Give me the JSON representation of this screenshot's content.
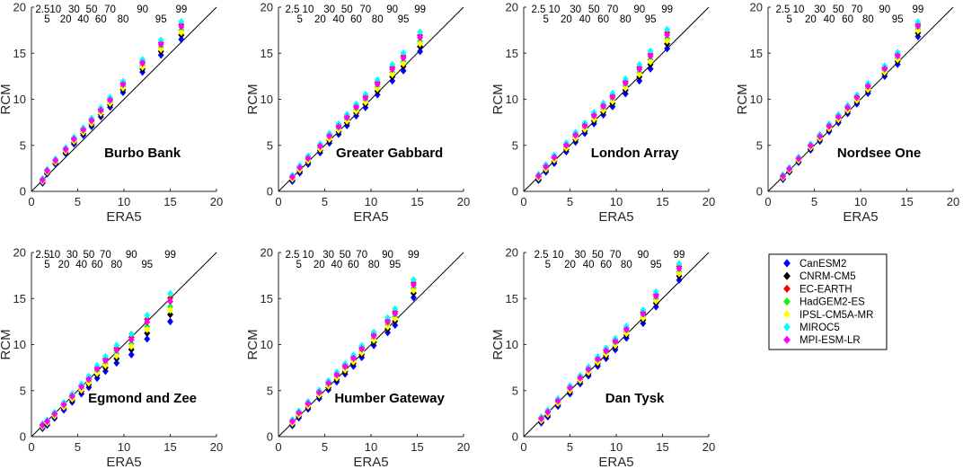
{
  "chart_data": {
    "type": "scatter",
    "xlabel": "ERA5",
    "ylabel": "RCM",
    "xlim": [
      0,
      20
    ],
    "ylim": [
      0,
      20
    ],
    "ticks": [
      0,
      5,
      10,
      15,
      20
    ],
    "reference_line": "1:1",
    "marker": "diamond",
    "percentiles": [
      "2.5",
      "5",
      "10",
      "20",
      "30",
      "40",
      "50",
      "60",
      "70",
      "80",
      "90",
      "95",
      "99"
    ],
    "legend": {
      "placement": "right",
      "entries": [
        {
          "name": "CanESM2",
          "color": "#0000ff"
        },
        {
          "name": "CNRM-CM5",
          "color": "#000000"
        },
        {
          "name": "EC-EARTH",
          "color": "#ff0000"
        },
        {
          "name": "HadGEM2-ES",
          "color": "#00ff00"
        },
        {
          "name": "IPSL-CM5A-MR",
          "color": "#ffff00"
        },
        {
          "name": "MIROC5",
          "color": "#00ffff"
        },
        {
          "name": "MPI-ESM-LR",
          "color": "#ff00ff"
        }
      ]
    },
    "panels": [
      {
        "title": "Burbo Bank",
        "era5": [
          1.2,
          1.7,
          2.6,
          3.7,
          4.6,
          5.6,
          6.5,
          7.5,
          8.5,
          9.9,
          12.0,
          14.0,
          16.2
        ],
        "offsets": [
          0.0,
          0.5,
          0.7,
          0.8,
          1.0,
          1.0,
          1.1,
          1.2,
          1.3,
          1.6,
          1.8,
          1.8,
          1.5
        ],
        "spread": [
          0.3,
          0.3,
          0.35,
          0.4,
          0.45,
          0.5,
          0.55,
          0.6,
          0.65,
          0.75,
          0.85,
          1.0,
          1.2
        ]
      },
      {
        "title": "Greater Gabbard",
        "era5": [
          1.5,
          2.3,
          3.2,
          4.5,
          5.5,
          6.5,
          7.4,
          8.4,
          9.4,
          10.7,
          12.3,
          13.5,
          15.3
        ],
        "offsets": [
          0.0,
          0.2,
          0.3,
          0.3,
          0.4,
          0.4,
          0.5,
          0.6,
          0.6,
          0.8,
          0.8,
          0.8,
          1.2
        ],
        "spread": [
          0.4,
          0.5,
          0.55,
          0.6,
          0.65,
          0.7,
          0.75,
          0.8,
          0.9,
          1.0,
          1.1,
          1.2,
          1.3
        ]
      },
      {
        "title": "London Array",
        "era5": [
          1.6,
          2.4,
          3.3,
          4.6,
          5.6,
          6.6,
          7.6,
          8.6,
          9.6,
          11.0,
          12.5,
          13.7,
          15.5
        ],
        "offsets": [
          0.0,
          0.2,
          0.3,
          0.3,
          0.4,
          0.4,
          0.5,
          0.5,
          0.5,
          0.6,
          0.6,
          0.8,
          1.3
        ],
        "spread": [
          0.4,
          0.5,
          0.55,
          0.6,
          0.65,
          0.7,
          0.75,
          0.8,
          0.9,
          1.0,
          1.1,
          1.2,
          1.3
        ]
      },
      {
        "title": "Nordsee One",
        "era5": [
          1.6,
          2.3,
          3.3,
          4.6,
          5.6,
          6.6,
          7.6,
          8.6,
          9.6,
          10.8,
          12.6,
          14.0,
          16.2
        ],
        "offsets": [
          0.0,
          0.1,
          0.2,
          0.3,
          0.3,
          0.4,
          0.4,
          0.4,
          0.5,
          0.5,
          0.6,
          0.6,
          1.6
        ],
        "spread": [
          0.3,
          0.3,
          0.35,
          0.4,
          0.45,
          0.5,
          0.55,
          0.55,
          0.6,
          0.65,
          0.7,
          0.8,
          1.0
        ]
      },
      {
        "title": "Egmond and Zee",
        "era5": [
          1.2,
          1.7,
          2.5,
          3.5,
          4.4,
          5.4,
          6.2,
          7.1,
          8.0,
          9.2,
          10.8,
          12.5,
          15.0
        ],
        "offsets": [
          0.0,
          -0.1,
          -0.1,
          -0.1,
          -0.1,
          -0.1,
          -0.1,
          0.1,
          0.1,
          0.0,
          -0.5,
          -0.3,
          -0.6
        ],
        "spread": [
          0.3,
          0.35,
          0.4,
          0.5,
          0.55,
          0.65,
          0.75,
          0.85,
          1.0,
          1.2,
          1.4,
          1.6,
          1.9
        ]
      },
      {
        "title": "Humber Gateway",
        "era5": [
          1.5,
          2.2,
          3.2,
          4.4,
          5.4,
          6.3,
          7.2,
          8.1,
          9.0,
          10.3,
          11.8,
          12.6,
          14.6
        ],
        "offsets": [
          0.1,
          0.3,
          0.3,
          0.3,
          0.3,
          0.3,
          0.3,
          0.3,
          0.4,
          0.5,
          0.5,
          0.6,
          1.7
        ],
        "spread": [
          0.4,
          0.45,
          0.5,
          0.55,
          0.6,
          0.65,
          0.7,
          0.75,
          0.8,
          0.9,
          1.0,
          1.1,
          1.2
        ]
      },
      {
        "title": "Dan Tysk",
        "era5": [
          1.9,
          2.6,
          3.7,
          5.0,
          6.1,
          7.0,
          8.0,
          8.9,
          9.9,
          11.1,
          12.9,
          14.3,
          16.8
        ],
        "offsets": [
          0.0,
          0.0,
          0.1,
          0.2,
          0.2,
          0.2,
          0.3,
          0.3,
          0.3,
          0.4,
          0.3,
          0.8,
          1.3
        ],
        "spread": [
          0.4,
          0.45,
          0.5,
          0.55,
          0.55,
          0.6,
          0.65,
          0.7,
          0.75,
          0.8,
          0.9,
          1.0,
          1.1
        ]
      }
    ]
  }
}
